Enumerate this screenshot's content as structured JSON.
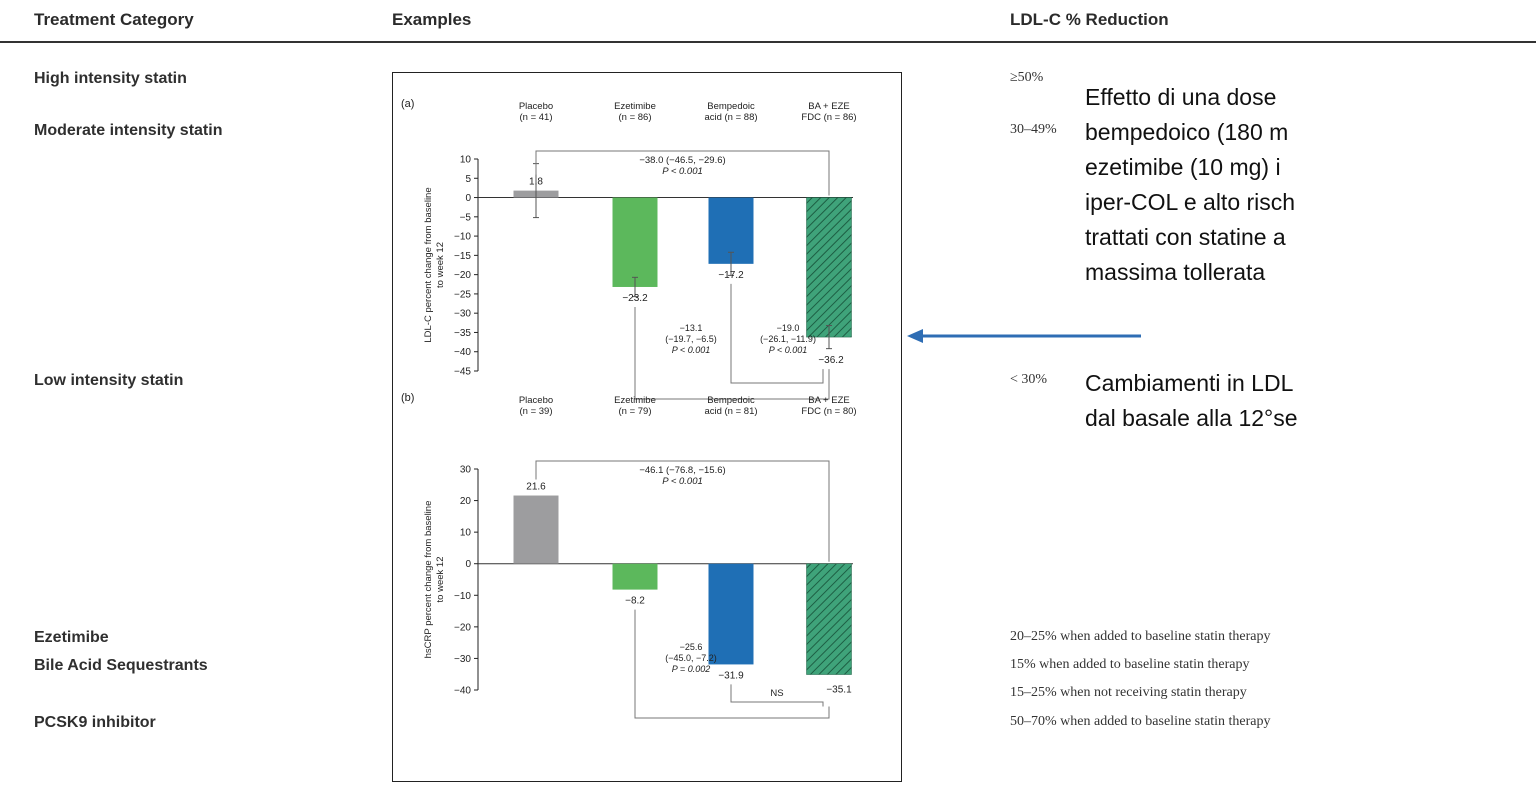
{
  "header": {
    "treatment_category": "Treatment Category",
    "examples": "Examples",
    "ldl_reduction": "LDL-C % Reduction"
  },
  "categories": [
    {
      "label": "High intensity statin"
    },
    {
      "label": "Moderate intensity statin"
    },
    {
      "label": "Low intensity statin"
    },
    {
      "label": "Ezetimibe"
    },
    {
      "label": "Bile Acid Sequestrants"
    },
    {
      "label": "PCSK9 inhibitor"
    }
  ],
  "reductions": [
    {
      "text": "≥50%"
    },
    {
      "text": "30–49%"
    },
    {
      "text": "< 30%"
    },
    {
      "text": "20–25% when added to baseline statin therapy"
    },
    {
      "text": "15% when added to baseline statin therapy"
    },
    {
      "text": "15–25% when not receiving statin therapy"
    },
    {
      "text": "50–70% when added to baseline statin therapy"
    }
  ],
  "note": {
    "text1": "Effetto di una dose\nbempedoico (180 m\nezetimibe (10 mg) i\niper-COL e alto risch\ntrattati con statine a\nmassima tollerata",
    "text2": "Cambiamenti in LDL\ndal basale alla 12°se"
  },
  "colors": {
    "placebo": "#9d9d9f",
    "ezetimibe": "#5cb85c",
    "bempedoic": "#1f6fb5",
    "fdc": "#3fa37a",
    "arrow": "#2e6db4"
  },
  "chart_data": [
    {
      "type": "bar",
      "panel": "(a)",
      "ylabel": "LDL-C percent change from baseline to week 12",
      "ylim": [
        -45,
        10
      ],
      "yticks": [
        10,
        5,
        0,
        -5,
        -10,
        -15,
        -20,
        -25,
        -30,
        -35,
        -40,
        -45
      ],
      "categories": [
        "Placebo\n(n = 41)",
        "Ezetimibe\n(n = 86)",
        "Bempedoic\nacid (n = 88)",
        "BA + EZE\nFDC (n = 86)"
      ],
      "values": [
        1.8,
        -23.2,
        -17.2,
        -36.2
      ],
      "value_labels": [
        "1.8",
        "−23.2",
        "−17.2",
        "−36.2"
      ],
      "errors": [
        7,
        2.5,
        3,
        3
      ],
      "annotations": [
        {
          "text": "−38.0 (−46.5, −29.6)",
          "sub": "P < 0.001"
        },
        {
          "text": "−13.1",
          "sub": "(−19.7, −6.5)",
          "sub2": "P < 0.001"
        },
        {
          "text": "−19.0",
          "sub": "(−26.1, −11.9)",
          "sub2": "P < 0.001"
        }
      ]
    },
    {
      "type": "bar",
      "panel": "(b)",
      "ylabel": "hsCRP percent change from baseline to week 12",
      "ylim": [
        -40,
        30
      ],
      "yticks": [
        30,
        20,
        10,
        0,
        -10,
        -20,
        -30,
        -40
      ],
      "categories": [
        "Placebo\n(n = 39)",
        "Ezetimibe\n(n = 79)",
        "Bempedoic\nacid (n = 81)",
        "BA + EZE\nFDC (n = 80)"
      ],
      "values": [
        21.6,
        -8.2,
        -31.9,
        -35.1
      ],
      "value_labels": [
        "21.6",
        "−8.2",
        "−31.9",
        "−35.1"
      ],
      "annotations": [
        {
          "text": "−46.1 (−76.8, −15.6)",
          "sub": "P < 0.001"
        },
        {
          "text": "−25.6",
          "sub": "(−45.0, −7.2)",
          "sub2": "P = 0.002"
        },
        {
          "text": "NS"
        }
      ]
    }
  ]
}
